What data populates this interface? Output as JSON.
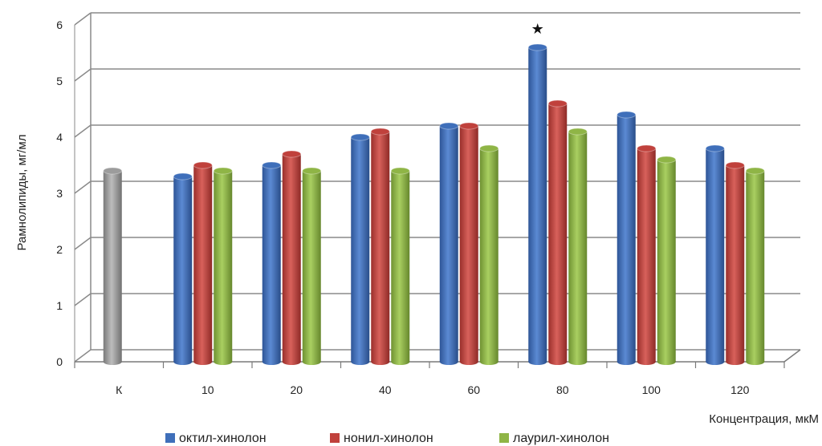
{
  "chart_data": {
    "type": "bar",
    "title": "",
    "ylabel": "Рамнолипиды, мг/мл",
    "xlabel": "Концентрация, мкМ",
    "ylim": [
      0,
      6
    ],
    "yticks": [
      "0",
      "1",
      "2",
      "3",
      "4",
      "5",
      "6"
    ],
    "grid": true,
    "legend_position": "bottom",
    "categories": [
      "К",
      "10",
      "20",
      "40",
      "60",
      "80",
      "100",
      "120"
    ],
    "control": {
      "category": "К",
      "value": 3.4,
      "color": "#9c9c9c"
    },
    "series": [
      {
        "name": "октил-хинолон",
        "color": "#3f6fba",
        "values": [
          null,
          3.3,
          3.5,
          4.0,
          4.2,
          5.6,
          4.4,
          3.8
        ]
      },
      {
        "name": "нонил-хинолон",
        "color": "#c0413c",
        "values": [
          null,
          3.5,
          3.7,
          4.1,
          4.2,
          4.6,
          3.8,
          3.5
        ]
      },
      {
        "name": "лаурил-хинолон",
        "color": "#8fb546",
        "values": [
          null,
          3.4,
          3.4,
          3.4,
          3.8,
          4.1,
          3.6,
          3.4
        ]
      }
    ],
    "annotations": [
      {
        "category": "80",
        "symbol": "★"
      }
    ]
  }
}
